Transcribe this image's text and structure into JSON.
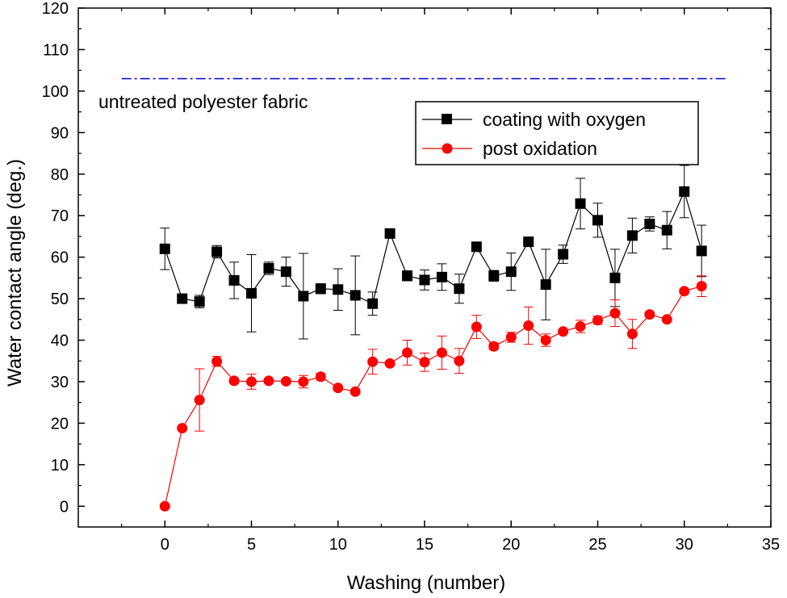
{
  "chart_data": {
    "type": "scatter",
    "xlabel": "Washing (number)",
    "ylabel": "Water contact angle (deg.)",
    "xlim": [
      -5,
      35
    ],
    "ylim": [
      -5,
      120
    ],
    "xticks": [
      0,
      5,
      10,
      15,
      20,
      25,
      30,
      35
    ],
    "yticks": [
      0,
      10,
      20,
      30,
      40,
      50,
      60,
      70,
      80,
      90,
      100,
      110,
      120
    ],
    "legend_position": "top-right",
    "grid": false,
    "reference_line": {
      "label": "untreated polyester fabric",
      "y": 103,
      "x_range": [
        -2.5,
        32.5
      ],
      "color": "#0000cc",
      "style": "dash-dot"
    },
    "series": [
      {
        "name": "coating with oxygen",
        "color": "#000000",
        "marker": "square",
        "x": [
          0,
          1,
          2,
          3,
          4,
          5,
          6,
          7,
          8,
          9,
          10,
          11,
          12,
          13,
          14,
          15,
          16,
          17,
          18,
          19,
          20,
          21,
          22,
          23,
          24,
          25,
          26,
          27,
          28,
          29,
          30,
          31
        ],
        "y": [
          62,
          50,
          49.3,
          61.3,
          54.4,
          51.3,
          57.3,
          56.5,
          50.6,
          52.4,
          52.2,
          50.8,
          48.8,
          65.7,
          55.5,
          54.5,
          55.2,
          52.4,
          62.5,
          55.5,
          56.5,
          63.7,
          53.4,
          60.7,
          72.9,
          68.9,
          55,
          65.2,
          68,
          66.5,
          75.8,
          61.5
        ],
        "err": [
          5,
          0.7,
          1.5,
          1.5,
          4.4,
          9.3,
          1.5,
          3.5,
          10.3,
          1.2,
          5,
          9.5,
          2.8,
          0.8,
          1.2,
          2.4,
          3.2,
          3.5,
          0.8,
          1.3,
          4.5,
          1,
          8.5,
          2.2,
          6.1,
          4.1,
          6.9,
          4.2,
          1.7,
          4.5,
          6.3,
          6.2
        ]
      },
      {
        "name": "post oxidation",
        "color": "#ff0000",
        "marker": "circle",
        "x": [
          0,
          1,
          2,
          3,
          4,
          5,
          6,
          7,
          8,
          9,
          10,
          11,
          12,
          13,
          14,
          15,
          16,
          17,
          18,
          19,
          20,
          21,
          22,
          23,
          24,
          25,
          26,
          27,
          28,
          29,
          30,
          31
        ],
        "y": [
          0,
          18.8,
          25.6,
          34.9,
          30.2,
          30,
          30.2,
          30.1,
          30,
          31.2,
          28.5,
          27.6,
          34.8,
          34.4,
          37,
          34.7,
          37,
          35,
          43.2,
          38.5,
          40.7,
          43.5,
          40,
          42.1,
          43.3,
          44.8,
          46.5,
          41.5,
          46.2,
          45,
          51.8,
          53
        ],
        "err": [
          0,
          0.5,
          7.5,
          1.2,
          0.6,
          1.8,
          0.5,
          0.5,
          1.5,
          0.8,
          0.5,
          0.5,
          3,
          0.5,
          3,
          2.2,
          4,
          3,
          2.8,
          0.8,
          1.2,
          4.5,
          1.5,
          0.5,
          1.5,
          1,
          3.2,
          3.5,
          0.5,
          0.5,
          0.5,
          2.5
        ]
      }
    ]
  }
}
